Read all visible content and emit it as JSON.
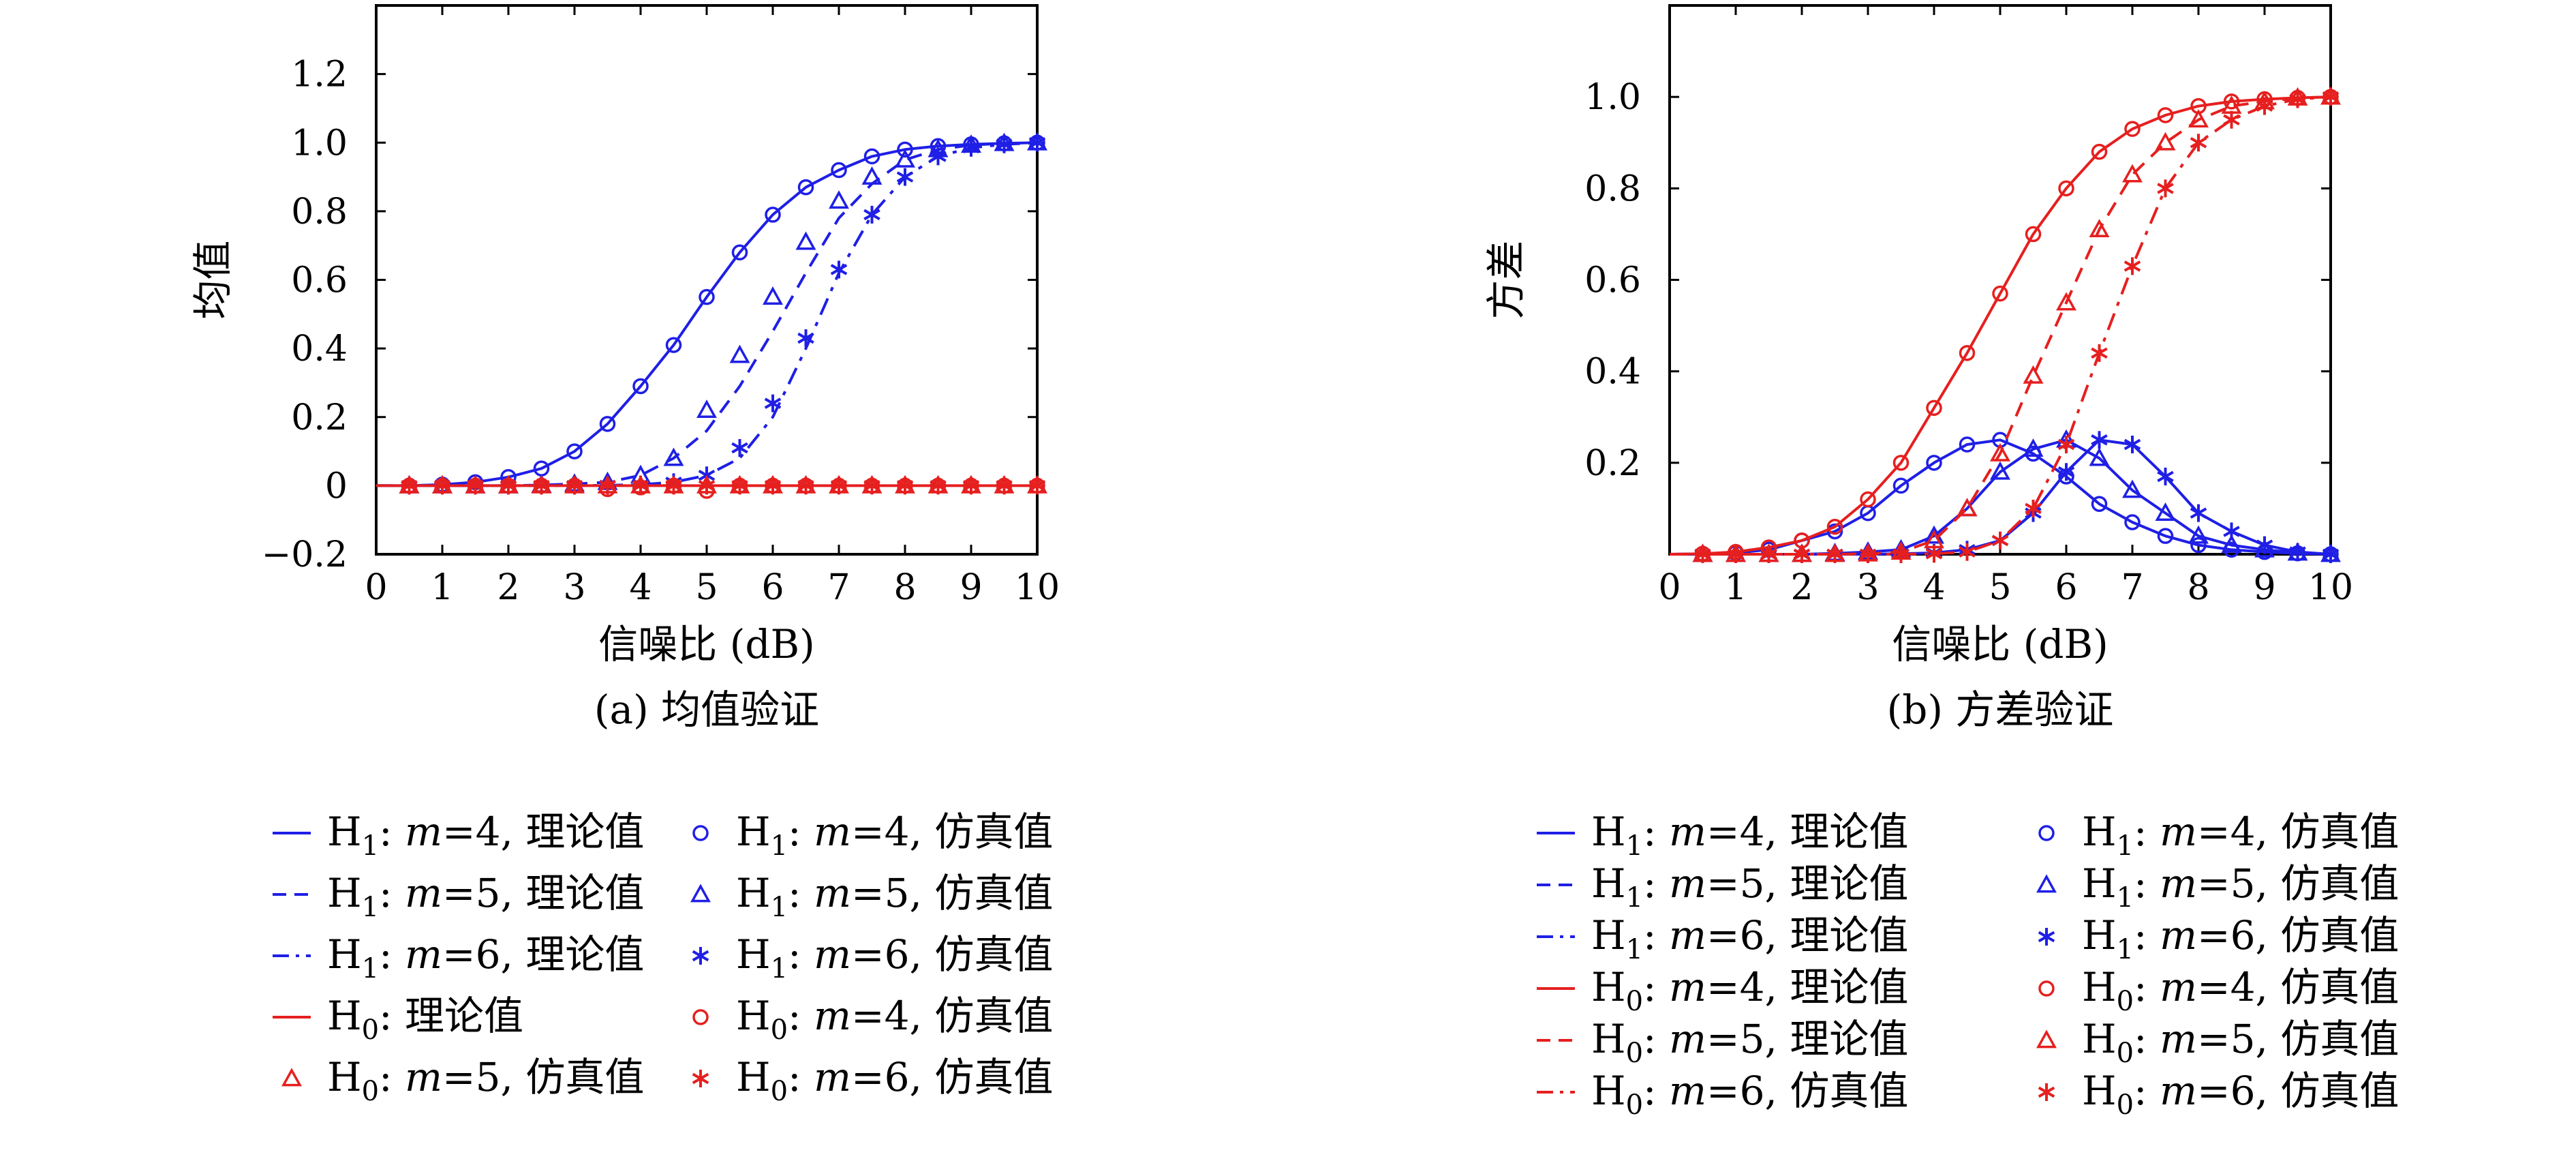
{
  "chart_data": [
    {
      "type": "line",
      "caption": "(a) 均值验证",
      "xlabel": "信噪比 (dB)",
      "ylabel": "均值",
      "xlim": [
        0,
        10
      ],
      "ylim": [
        -0.2,
        1.4
      ],
      "xticks": [
        0,
        1,
        2,
        3,
        4,
        5,
        6,
        7,
        8,
        9,
        10
      ],
      "yticks": [
        -0.2,
        0,
        0.2,
        0.4,
        0.6,
        0.8,
        1.0,
        1.2
      ],
      "ytick_labels": [
        "−0.2",
        "0",
        "0.2",
        "0.4",
        "0.6",
        "0.8",
        "1.0",
        "1.2"
      ],
      "grid": false,
      "legend_position": "below",
      "x": [
        0,
        0.5,
        1,
        1.5,
        2,
        2.5,
        3,
        3.5,
        4,
        4.5,
        5,
        5.5,
        6,
        6.5,
        7,
        7.5,
        8,
        8.5,
        9,
        9.5,
        10
      ],
      "series": [
        {
          "name": "H₁: m=4, 理论值",
          "color": "#1f1fe6",
          "line": "solid",
          "marker": "none",
          "values": [
            0.0,
            0.0,
            0.003,
            0.01,
            0.025,
            0.05,
            0.1,
            0.18,
            0.29,
            0.41,
            0.55,
            0.68,
            0.79,
            0.87,
            0.92,
            0.96,
            0.98,
            0.99,
            0.995,
            0.998,
            1.0
          ]
        },
        {
          "name": "H₁: m=5, 理论值",
          "color": "#1f1fe6",
          "line": "dashed",
          "marker": "none",
          "values": [
            0.0,
            0.0,
            0.0,
            0.0,
            0.0,
            0.002,
            0.005,
            0.01,
            0.03,
            0.08,
            0.16,
            0.29,
            0.45,
            0.62,
            0.78,
            0.88,
            0.95,
            0.98,
            0.993,
            0.998,
            1.0
          ]
        },
        {
          "name": "H₁: m=6, 理论值",
          "color": "#1f1fe6",
          "line": "dashdot",
          "marker": "none",
          "values": [
            0.0,
            0.0,
            0.0,
            0.0,
            0.0,
            0.0,
            0.0,
            0.001,
            0.003,
            0.01,
            0.03,
            0.08,
            0.2,
            0.4,
            0.62,
            0.79,
            0.9,
            0.96,
            0.985,
            0.995,
            1.0
          ]
        },
        {
          "name": "H₀: 理论值",
          "color": "#e61f1f",
          "line": "solid",
          "marker": "none",
          "values": [
            0,
            0,
            0,
            0,
            0,
            0,
            0,
            0,
            0,
            0,
            0,
            0,
            0,
            0,
            0,
            0,
            0,
            0,
            0,
            0,
            0
          ]
        },
        {
          "name": "H₁: m=4, 仿真值",
          "color": "#1f1fe6",
          "line": "none",
          "marker": "circle",
          "values": [
            null,
            0.0,
            0.003,
            0.01,
            0.025,
            0.05,
            0.1,
            0.18,
            0.29,
            0.41,
            0.55,
            0.68,
            0.79,
            0.87,
            0.92,
            0.96,
            0.98,
            0.99,
            0.995,
            0.998,
            1.0
          ]
        },
        {
          "name": "H₁: m=5, 仿真值",
          "color": "#1f1fe6",
          "line": "none",
          "marker": "triangle",
          "values": [
            null,
            0.0,
            0.0,
            0.0,
            0.0,
            0.002,
            0.005,
            0.01,
            0.03,
            0.08,
            0.22,
            0.38,
            0.55,
            0.71,
            0.83,
            0.9,
            0.95,
            0.98,
            0.993,
            0.998,
            1.0
          ]
        },
        {
          "name": "H₁: m=6, 仿真值",
          "color": "#1f1fe6",
          "line": "none",
          "marker": "star",
          "values": [
            null,
            0.0,
            0.0,
            0.0,
            0.0,
            0.0,
            0.0,
            0.001,
            0.003,
            0.01,
            0.03,
            0.11,
            0.24,
            0.43,
            0.63,
            0.79,
            0.9,
            0.96,
            0.985,
            0.995,
            1.0
          ]
        },
        {
          "name": "H₀: m=4, 仿真值",
          "color": "#e61f1f",
          "line": "none",
          "marker": "circle",
          "values": [
            null,
            0,
            0,
            0,
            0,
            0,
            0,
            -0.01,
            -0.005,
            0,
            -0.015,
            0,
            0,
            0,
            0,
            0,
            0,
            0,
            0,
            0,
            0
          ]
        },
        {
          "name": "H₀: m=5, 仿真值",
          "color": "#e61f1f",
          "line": "none",
          "marker": "triangle",
          "values": [
            null,
            0,
            0,
            0,
            0,
            0,
            0,
            0,
            0,
            0,
            0,
            0,
            0,
            0,
            0,
            0,
            0,
            0,
            0,
            0,
            0
          ]
        },
        {
          "name": "H₀: m=6, 仿真值",
          "color": "#e61f1f",
          "line": "none",
          "marker": "star",
          "values": [
            null,
            0,
            0,
            0,
            0,
            0,
            0,
            0,
            0,
            0,
            0,
            0,
            0,
            0,
            0,
            0,
            0,
            0,
            0,
            0,
            0
          ]
        }
      ]
    },
    {
      "type": "line",
      "caption": "(b) 方差验证",
      "xlabel": "信噪比 (dB)",
      "ylabel": "方差",
      "xlim": [
        0,
        10
      ],
      "ylim": [
        0,
        1.2
      ],
      "xticks": [
        0,
        1,
        2,
        3,
        4,
        5,
        6,
        7,
        8,
        9,
        10
      ],
      "yticks": [
        0.2,
        0.4,
        0.6,
        0.8,
        1.0
      ],
      "ytick_labels": [
        "0.2",
        "0.4",
        "0.6",
        "0.8",
        "1.0"
      ],
      "grid": false,
      "legend_position": "below",
      "x": [
        0,
        0.5,
        1,
        1.5,
        2,
        2.5,
        3,
        3.5,
        4,
        4.5,
        5,
        5.5,
        6,
        6.5,
        7,
        7.5,
        8,
        8.5,
        9,
        9.5,
        10
      ],
      "series": [
        {
          "name": "H₁: m=4, 理论值",
          "color": "#1f1fe6",
          "line": "solid",
          "marker": "circle",
          "values": [
            0.0,
            0.001,
            0.003,
            0.01,
            0.03,
            0.05,
            0.09,
            0.15,
            0.2,
            0.24,
            0.25,
            0.22,
            0.17,
            0.11,
            0.07,
            0.04,
            0.02,
            0.01,
            0.005,
            0.002,
            0.0
          ]
        },
        {
          "name": "H₁: m=5, 理论值",
          "color": "#1f1fe6",
          "line": "solid",
          "marker": "triangle",
          "values": [
            0.0,
            0.0,
            0.0,
            0.0,
            0.0,
            0.002,
            0.005,
            0.01,
            0.04,
            0.1,
            0.18,
            0.23,
            0.25,
            0.21,
            0.14,
            0.09,
            0.04,
            0.02,
            0.01,
            0.003,
            0.0
          ]
        },
        {
          "name": "H₁: m=6, 理论值",
          "color": "#1f1fe6",
          "line": "solid",
          "marker": "star",
          "values": [
            0.0,
            0.0,
            0.0,
            0.0,
            0.0,
            0.0,
            0.0,
            0.001,
            0.003,
            0.01,
            0.03,
            0.09,
            0.18,
            0.25,
            0.24,
            0.17,
            0.09,
            0.05,
            0.02,
            0.005,
            0.0
          ]
        },
        {
          "name": "H₀: m=4, 理论值",
          "color": "#e61f1f",
          "line": "solid",
          "marker": "circle",
          "values": [
            0.0,
            0.001,
            0.005,
            0.015,
            0.03,
            0.06,
            0.12,
            0.2,
            0.32,
            0.44,
            0.57,
            0.7,
            0.8,
            0.88,
            0.93,
            0.96,
            0.98,
            0.99,
            0.995,
            0.998,
            1.0
          ]
        },
        {
          "name": "H₀: m=5, 理论值",
          "color": "#e61f1f",
          "line": "dashed",
          "marker": "triangle",
          "values": [
            0.0,
            0.0,
            0.0,
            0.0,
            0.0,
            0.0,
            0.001,
            0.005,
            0.03,
            0.1,
            0.22,
            0.39,
            0.55,
            0.71,
            0.83,
            0.9,
            0.95,
            0.98,
            0.99,
            0.998,
            1.0
          ]
        },
        {
          "name": "H₀: m=6, 仿真值",
          "color": "#e61f1f",
          "line": "dashdot",
          "marker": "star",
          "values": [
            0.0,
            0.0,
            0.0,
            0.0,
            0.0,
            0.0,
            0.0,
            0.0,
            0.001,
            0.005,
            0.03,
            0.1,
            0.24,
            0.44,
            0.63,
            0.8,
            0.9,
            0.95,
            0.98,
            0.995,
            1.0
          ]
        }
      ]
    }
  ],
  "legend_a": [
    {
      "type": "line",
      "dash": "solid",
      "color": "#1f1fe6",
      "h": "H",
      "sub": "1",
      "pre": ": ",
      "m": "m",
      "rest": "=4, 理论值"
    },
    {
      "type": "marker",
      "marker": "circle",
      "color": "#1f1fe6",
      "h": "H",
      "sub": "1",
      "pre": ": ",
      "m": "m",
      "rest": "=4, 仿真值"
    },
    {
      "type": "line",
      "dash": "dashed",
      "color": "#1f1fe6",
      "h": "H",
      "sub": "1",
      "pre": ": ",
      "m": "m",
      "rest": "=5, 理论值"
    },
    {
      "type": "marker",
      "marker": "triangle",
      "color": "#1f1fe6",
      "h": "H",
      "sub": "1",
      "pre": ": ",
      "m": "m",
      "rest": "=5, 仿真值"
    },
    {
      "type": "line",
      "dash": "dashdot",
      "color": "#1f1fe6",
      "h": "H",
      "sub": "1",
      "pre": ": ",
      "m": "m",
      "rest": "=6, 理论值"
    },
    {
      "type": "marker",
      "marker": "star",
      "color": "#1f1fe6",
      "h": "H",
      "sub": "1",
      "pre": ": ",
      "m": "m",
      "rest": "=6, 仿真值"
    },
    {
      "type": "line",
      "dash": "solid",
      "color": "#e61f1f",
      "h": "H",
      "sub": "0",
      "pre": ": 理论值",
      "m": "",
      "rest": ""
    },
    {
      "type": "marker",
      "marker": "circle",
      "color": "#e61f1f",
      "h": "H",
      "sub": "0",
      "pre": ": ",
      "m": "m",
      "rest": "=4, 仿真值"
    },
    {
      "type": "marker",
      "marker": "triangle",
      "color": "#e61f1f",
      "h": "H",
      "sub": "0",
      "pre": ": ",
      "m": "m",
      "rest": "=5, 仿真值"
    },
    {
      "type": "marker",
      "marker": "star",
      "color": "#e61f1f",
      "h": "H",
      "sub": "0",
      "pre": ": ",
      "m": "m",
      "rest": "=6, 仿真值"
    }
  ],
  "legend_b": [
    {
      "type": "line",
      "dash": "solid",
      "color": "#1f1fe6",
      "h": "H",
      "sub": "1",
      "pre": ": ",
      "m": "m",
      "rest": "=4, 理论值"
    },
    {
      "type": "marker",
      "marker": "circle",
      "color": "#1f1fe6",
      "h": "H",
      "sub": "1",
      "pre": ": ",
      "m": "m",
      "rest": "=4, 仿真值"
    },
    {
      "type": "line",
      "dash": "dashed",
      "color": "#1f1fe6",
      "h": "H",
      "sub": "1",
      "pre": ": ",
      "m": "m",
      "rest": "=5, 理论值"
    },
    {
      "type": "marker",
      "marker": "triangle",
      "color": "#1f1fe6",
      "h": "H",
      "sub": "1",
      "pre": ": ",
      "m": "m",
      "rest": "=5, 仿真值"
    },
    {
      "type": "line",
      "dash": "dashdot",
      "color": "#1f1fe6",
      "h": "H",
      "sub": "1",
      "pre": ": ",
      "m": "m",
      "rest": "=6, 理论值"
    },
    {
      "type": "marker",
      "marker": "star",
      "color": "#1f1fe6",
      "h": "H",
      "sub": "1",
      "pre": ": ",
      "m": "m",
      "rest": "=6, 仿真值"
    },
    {
      "type": "line",
      "dash": "solid",
      "color": "#e61f1f",
      "h": "H",
      "sub": "0",
      "pre": ": ",
      "m": "m",
      "rest": "=4, 理论值"
    },
    {
      "type": "marker",
      "marker": "circle",
      "color": "#e61f1f",
      "h": "H",
      "sub": "0",
      "pre": ": ",
      "m": "m",
      "rest": "=4, 仿真值"
    },
    {
      "type": "line",
      "dash": "dashed",
      "color": "#e61f1f",
      "h": "H",
      "sub": "0",
      "pre": ": ",
      "m": "m",
      "rest": "=5, 理论值"
    },
    {
      "type": "marker",
      "marker": "triangle",
      "color": "#e61f1f",
      "h": "H",
      "sub": "0",
      "pre": ": ",
      "m": "m",
      "rest": "=5, 仿真值"
    },
    {
      "type": "line",
      "dash": "dashdot",
      "color": "#e61f1f",
      "h": "H",
      "sub": "0",
      "pre": ": ",
      "m": "m",
      "rest": "=6, 仿真值"
    },
    {
      "type": "marker",
      "marker": "star",
      "color": "#e61f1f",
      "h": "H",
      "sub": "0",
      "pre": ": ",
      "m": "m",
      "rest": "=6, 仿真值"
    }
  ]
}
